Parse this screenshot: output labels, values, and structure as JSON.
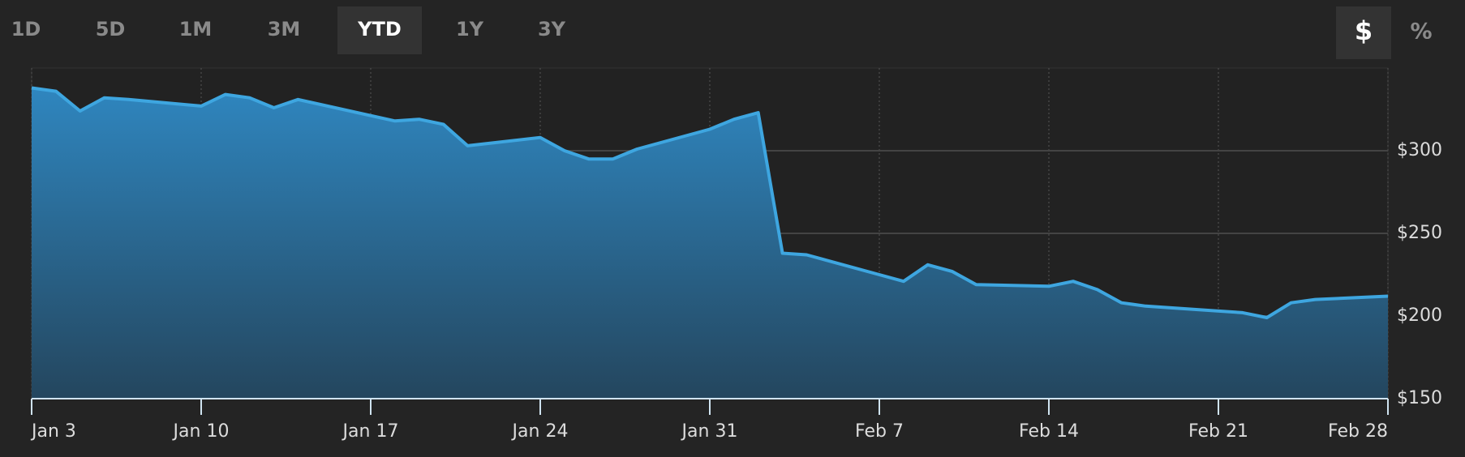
{
  "controls": {
    "ranges": [
      {
        "label": "1D",
        "selected": false
      },
      {
        "label": "5D",
        "selected": false
      },
      {
        "label": "1M",
        "selected": false
      },
      {
        "label": "3M",
        "selected": false
      },
      {
        "label": "YTD",
        "selected": true
      },
      {
        "label": "1Y",
        "selected": false
      },
      {
        "label": "3Y",
        "selected": false
      }
    ],
    "units": [
      {
        "label": "$",
        "selected": true
      },
      {
        "label": "%",
        "selected": false
      }
    ]
  },
  "chart_data": {
    "type": "area",
    "x": [
      "Jan 3",
      "Jan 4",
      "Jan 5",
      "Jan 6",
      "Jan 7",
      "Jan 10",
      "Jan 11",
      "Jan 12",
      "Jan 13",
      "Jan 14",
      "Jan 18",
      "Jan 19",
      "Jan 20",
      "Jan 21",
      "Jan 24",
      "Jan 25",
      "Jan 26",
      "Jan 27",
      "Jan 28",
      "Jan 31",
      "Feb 1",
      "Feb 2",
      "Feb 3",
      "Feb 4",
      "Feb 7",
      "Feb 8",
      "Feb 9",
      "Feb 10",
      "Feb 11",
      "Feb 14",
      "Feb 15",
      "Feb 16",
      "Feb 17",
      "Feb 18",
      "Feb 22",
      "Feb 23",
      "Feb 24",
      "Feb 25",
      "Feb 28"
    ],
    "values": [
      338,
      336,
      324,
      332,
      331,
      327,
      334,
      332,
      326,
      331,
      318,
      319,
      316,
      303,
      308,
      300,
      295,
      295,
      301,
      313,
      319,
      323,
      238,
      237,
      225,
      221,
      231,
      227,
      219,
      218,
      221,
      216,
      208,
      206,
      202,
      199,
      208,
      210,
      212
    ],
    "color": "#3ea6e0",
    "xlim": [
      "Jan 3",
      "Feb 28"
    ],
    "xticks": [
      "Jan 3",
      "Jan 10",
      "Jan 17",
      "Jan 24",
      "Jan 31",
      "Feb 7",
      "Feb 14",
      "Feb 21",
      "Feb 28"
    ],
    "ylim": [
      150,
      350
    ],
    "yticks": [
      {
        "value": 150,
        "label": "$150"
      },
      {
        "value": 200,
        "label": "$200"
      },
      {
        "value": 250,
        "label": "$250"
      },
      {
        "value": 300,
        "label": "$300"
      }
    ],
    "grid": true
  }
}
